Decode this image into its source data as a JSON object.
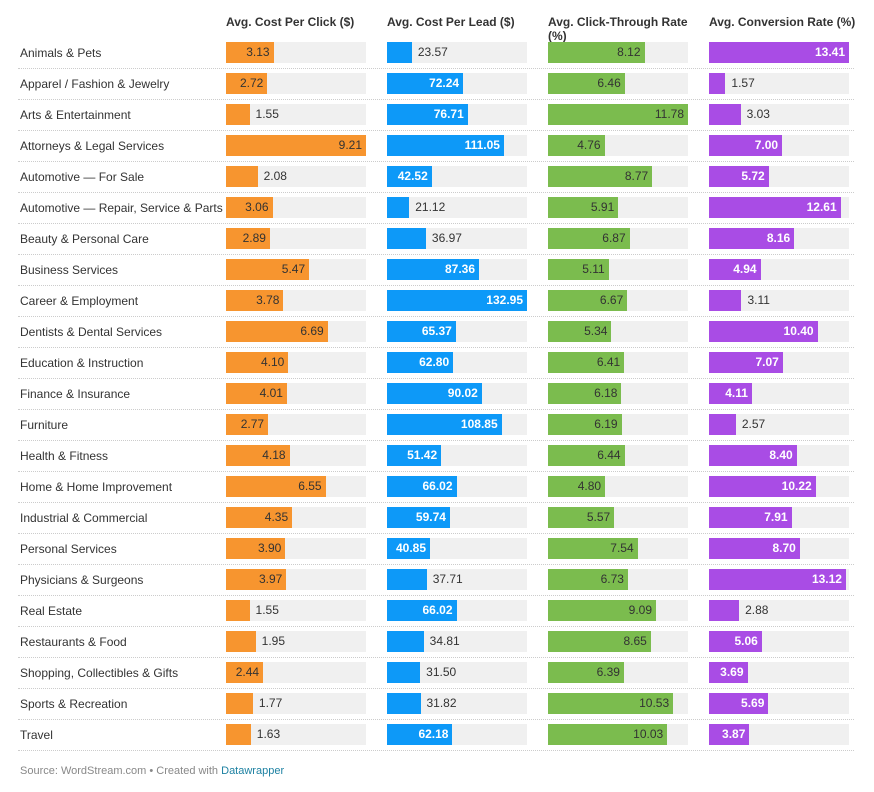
{
  "chart_data": {
    "type": "table",
    "columns": [
      {
        "name": "Avg. Cost Per Click ($)",
        "color": "#f7952f"
      },
      {
        "name": "Avg. Cost Per Lead ($)",
        "color": "#0d99f8"
      },
      {
        "name": "Avg. Click-Through Rate (%)",
        "color": "#7bbc4e"
      },
      {
        "name": "Avg. Conversion Rate (%)",
        "color": "#a94ce5"
      }
    ],
    "rows": [
      {
        "category": "Animals & Pets",
        "values": [
          "3.13",
          "23.57",
          "8.12",
          "13.41"
        ]
      },
      {
        "category": "Apparel / Fashion & Jewelry",
        "values": [
          "2.72",
          "72.24",
          "6.46",
          "1.57"
        ]
      },
      {
        "category": "Arts & Entertainment",
        "values": [
          "1.55",
          "76.71",
          "11.78",
          "3.03"
        ]
      },
      {
        "category": "Attorneys & Legal Services",
        "values": [
          "9.21",
          "111.05",
          "4.76",
          "7.00"
        ]
      },
      {
        "category": "Automotive — For Sale",
        "values": [
          "2.08",
          "42.52",
          "8.77",
          "5.72"
        ]
      },
      {
        "category": "Automotive — Repair, Service & Parts",
        "values": [
          "3.06",
          "21.12",
          "5.91",
          "12.61"
        ]
      },
      {
        "category": "Beauty & Personal Care",
        "values": [
          "2.89",
          "36.97",
          "6.87",
          "8.16"
        ]
      },
      {
        "category": "Business Services",
        "values": [
          "5.47",
          "87.36",
          "5.11",
          "4.94"
        ]
      },
      {
        "category": "Career & Employment",
        "values": [
          "3.78",
          "132.95",
          "6.67",
          "3.11"
        ]
      },
      {
        "category": "Dentists & Dental Services",
        "values": [
          "6.69",
          "65.37",
          "5.34",
          "10.40"
        ]
      },
      {
        "category": "Education & Instruction",
        "values": [
          "4.10",
          "62.80",
          "6.41",
          "7.07"
        ]
      },
      {
        "category": "Finance & Insurance",
        "values": [
          "4.01",
          "90.02",
          "6.18",
          "4.11"
        ]
      },
      {
        "category": "Furniture",
        "values": [
          "2.77",
          "108.85",
          "6.19",
          "2.57"
        ]
      },
      {
        "category": "Health & Fitness",
        "values": [
          "4.18",
          "51.42",
          "6.44",
          "8.40"
        ]
      },
      {
        "category": "Home & Home Improvement",
        "values": [
          "6.55",
          "66.02",
          "4.80",
          "10.22"
        ]
      },
      {
        "category": "Industrial & Commercial",
        "values": [
          "4.35",
          "59.74",
          "5.57",
          "7.91"
        ]
      },
      {
        "category": "Personal Services",
        "values": [
          "3.90",
          "40.85",
          "7.54",
          "8.70"
        ]
      },
      {
        "category": "Physicians & Surgeons",
        "values": [
          "3.97",
          "37.71",
          "6.73",
          "13.12"
        ]
      },
      {
        "category": "Real Estate",
        "values": [
          "1.55",
          "66.02",
          "9.09",
          "2.88"
        ]
      },
      {
        "category": "Restaurants & Food",
        "values": [
          "1.95",
          "34.81",
          "8.65",
          "5.06"
        ]
      },
      {
        "category": "Shopping, Collectibles & Gifts",
        "values": [
          "2.44",
          "31.50",
          "6.39",
          "3.69"
        ]
      },
      {
        "category": "Sports & Recreation",
        "values": [
          "1.77",
          "31.82",
          "10.53",
          "5.69"
        ]
      },
      {
        "category": "Travel",
        "values": [
          "1.63",
          "62.18",
          "10.03",
          "3.87"
        ]
      }
    ]
  },
  "footer": {
    "source": "Source: WordStream.com • Created with ",
    "link": "Datawrapper"
  }
}
